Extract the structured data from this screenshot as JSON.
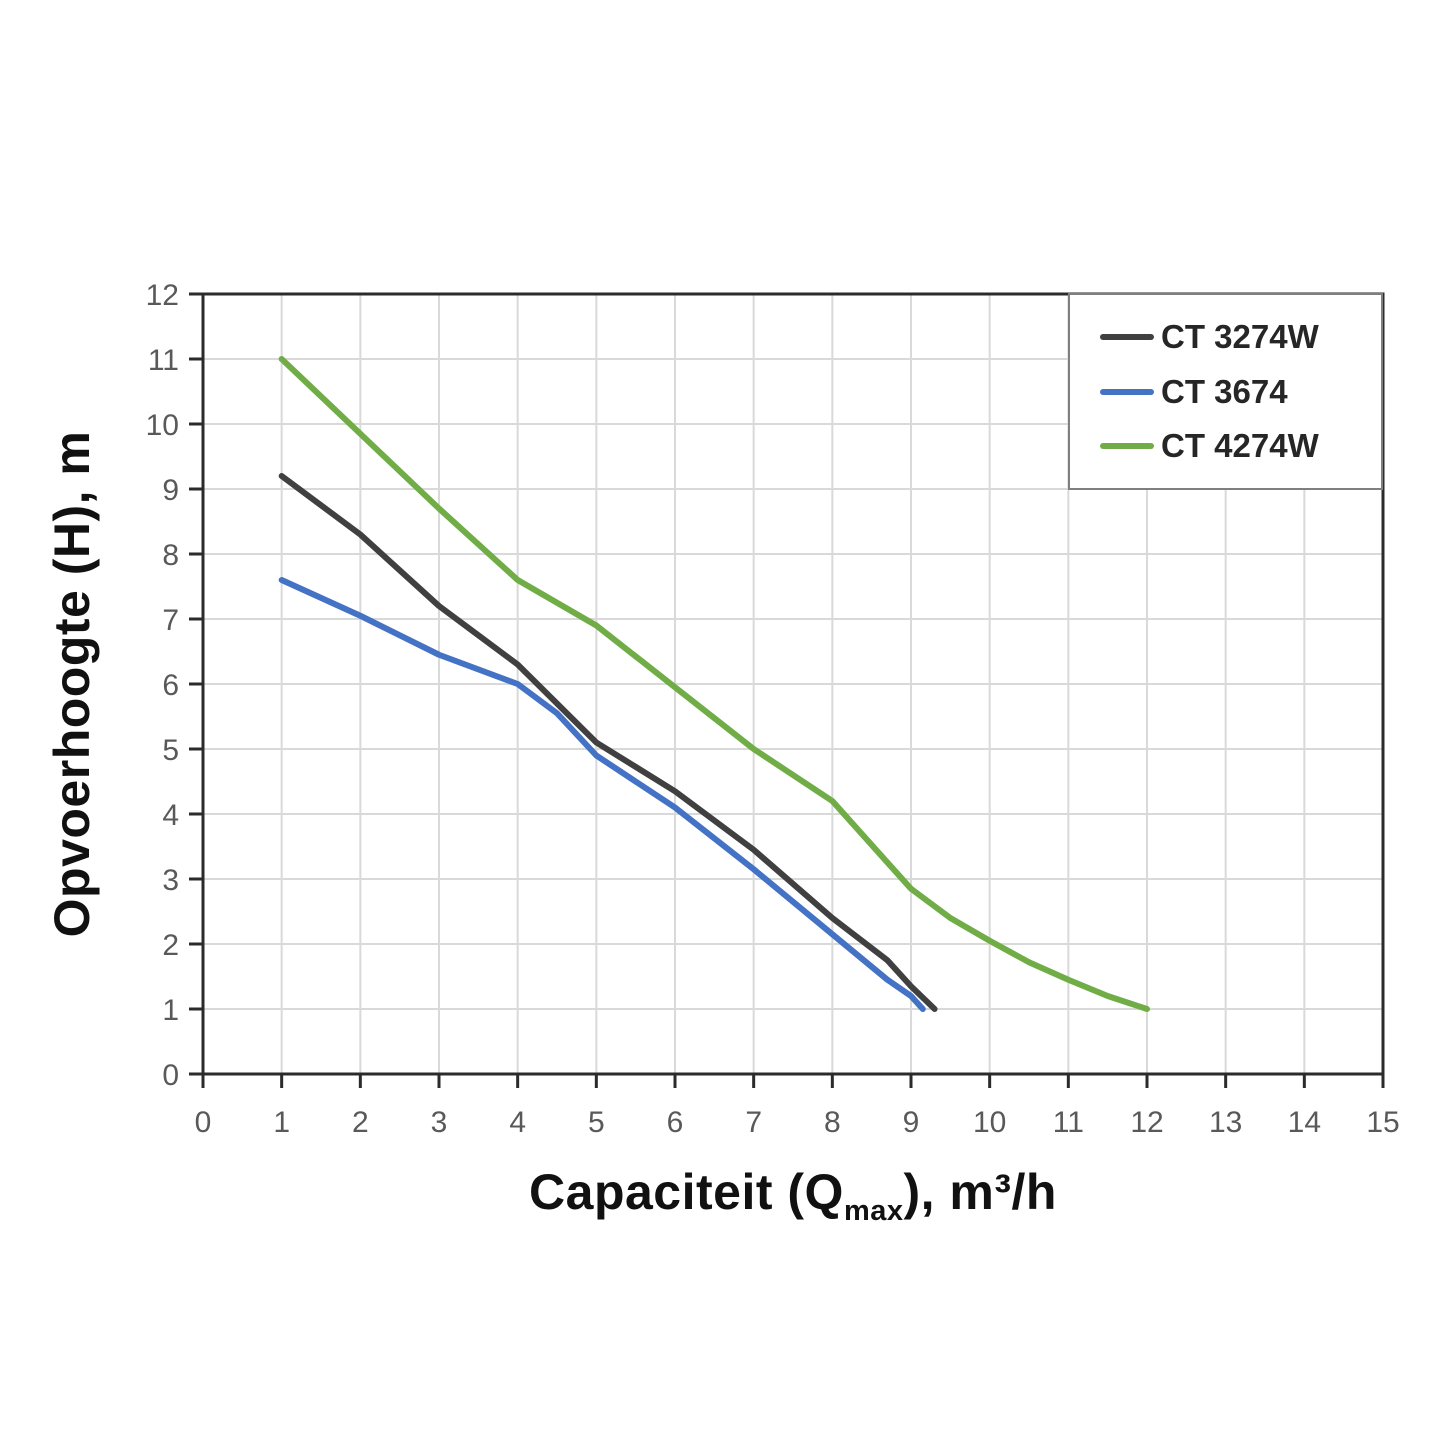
{
  "page": {
    "background": "#ffffff"
  },
  "chart_data": {
    "type": "line",
    "title": "",
    "xlabel": {
      "prefix": "Capaciteit (Q",
      "sub": "max",
      "suffix": "), m³/h"
    },
    "ylabel": "Opvoerhoogte (H), m",
    "xlim": [
      0,
      15
    ],
    "ylim": [
      0,
      12
    ],
    "x_ticks": [
      0,
      1,
      2,
      3,
      4,
      5,
      6,
      7,
      8,
      9,
      10,
      11,
      12,
      13,
      14,
      15
    ],
    "y_ticks": [
      0,
      1,
      2,
      3,
      4,
      5,
      6,
      7,
      8,
      9,
      10,
      11,
      12
    ],
    "grid": true,
    "legend_position": "top-right",
    "series": [
      {
        "name": "CT 3274W",
        "color": "#404040",
        "x": [
          1,
          2,
          3,
          4,
          5,
          6,
          7,
          8,
          8.7,
          9,
          9.3
        ],
        "y": [
          9.2,
          8.3,
          7.2,
          6.3,
          5.1,
          4.35,
          3.45,
          2.4,
          1.75,
          1.35,
          1.0
        ]
      },
      {
        "name": "CT 3674",
        "color": "#4472c4",
        "x": [
          1,
          2,
          3,
          4,
          4.5,
          5,
          6,
          7,
          8,
          8.7,
          9,
          9.15
        ],
        "y": [
          7.6,
          7.05,
          6.45,
          6.0,
          5.55,
          4.9,
          4.1,
          3.15,
          2.15,
          1.45,
          1.2,
          1.0
        ]
      },
      {
        "name": "CT 4274W",
        "color": "#70ad47",
        "x": [
          1,
          2,
          3,
          4,
          5,
          6,
          7,
          8,
          9,
          9.5,
          10,
          10.5,
          11,
          11.5,
          12
        ],
        "y": [
          11.0,
          9.85,
          8.7,
          7.6,
          6.9,
          5.95,
          5.0,
          4.2,
          2.85,
          2.4,
          2.05,
          1.72,
          1.45,
          1.2,
          1.0
        ]
      }
    ],
    "colors": {
      "grid": "#d9d9d9",
      "axis": "#2b2b2b",
      "tick_label": "#595959",
      "title": "#111111",
      "legend_border": "#7f7f7f",
      "legend_text": "#262626"
    }
  }
}
